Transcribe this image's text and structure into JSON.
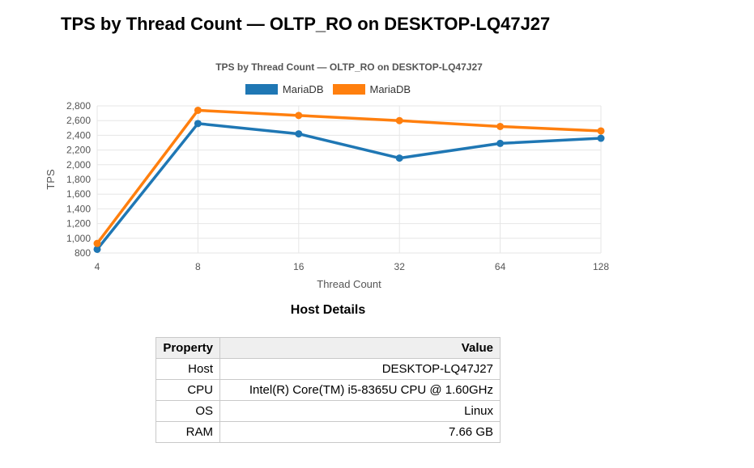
{
  "page": {
    "title": "TPS by Thread Count — OLTP_RO on DESKTOP-LQ47J27"
  },
  "chart_data": {
    "type": "line",
    "title": "TPS by Thread Count — OLTP_RO on DESKTOP-LQ47J27",
    "categories": [
      "4",
      "8",
      "16",
      "32",
      "64",
      "128"
    ],
    "series": [
      {
        "name": "MariaDB",
        "color": "#1f77b4",
        "values": [
          850,
          2560,
          2420,
          2090,
          2290,
          2360
        ]
      },
      {
        "name": "MariaDB",
        "color": "#ff7f0e",
        "values": [
          930,
          2740,
          2670,
          2600,
          2520,
          2460
        ]
      }
    ],
    "xlabel": "Thread Count",
    "ylabel": "TPS",
    "ylim": [
      800,
      2800
    ],
    "ytick_step": 200,
    "ytick_labels": [
      "800",
      "1,000",
      "1,200",
      "1,400",
      "1,600",
      "1,800",
      "2,000",
      "2,200",
      "2,400",
      "2,600",
      "2,800"
    ],
    "grid": true,
    "legend_position": "top",
    "grid_color": "#e6e6e6",
    "tick_color": "#555555"
  },
  "host_details": {
    "heading": "Host Details",
    "columns": [
      "Property",
      "Value"
    ],
    "rows": [
      [
        "Host",
        "DESKTOP-LQ47J27"
      ],
      [
        "CPU",
        "Intel(R) Core(TM) i5-8365U CPU @ 1.60GHz"
      ],
      [
        "OS",
        "Linux"
      ],
      [
        "RAM",
        "7.66 GB"
      ]
    ]
  }
}
